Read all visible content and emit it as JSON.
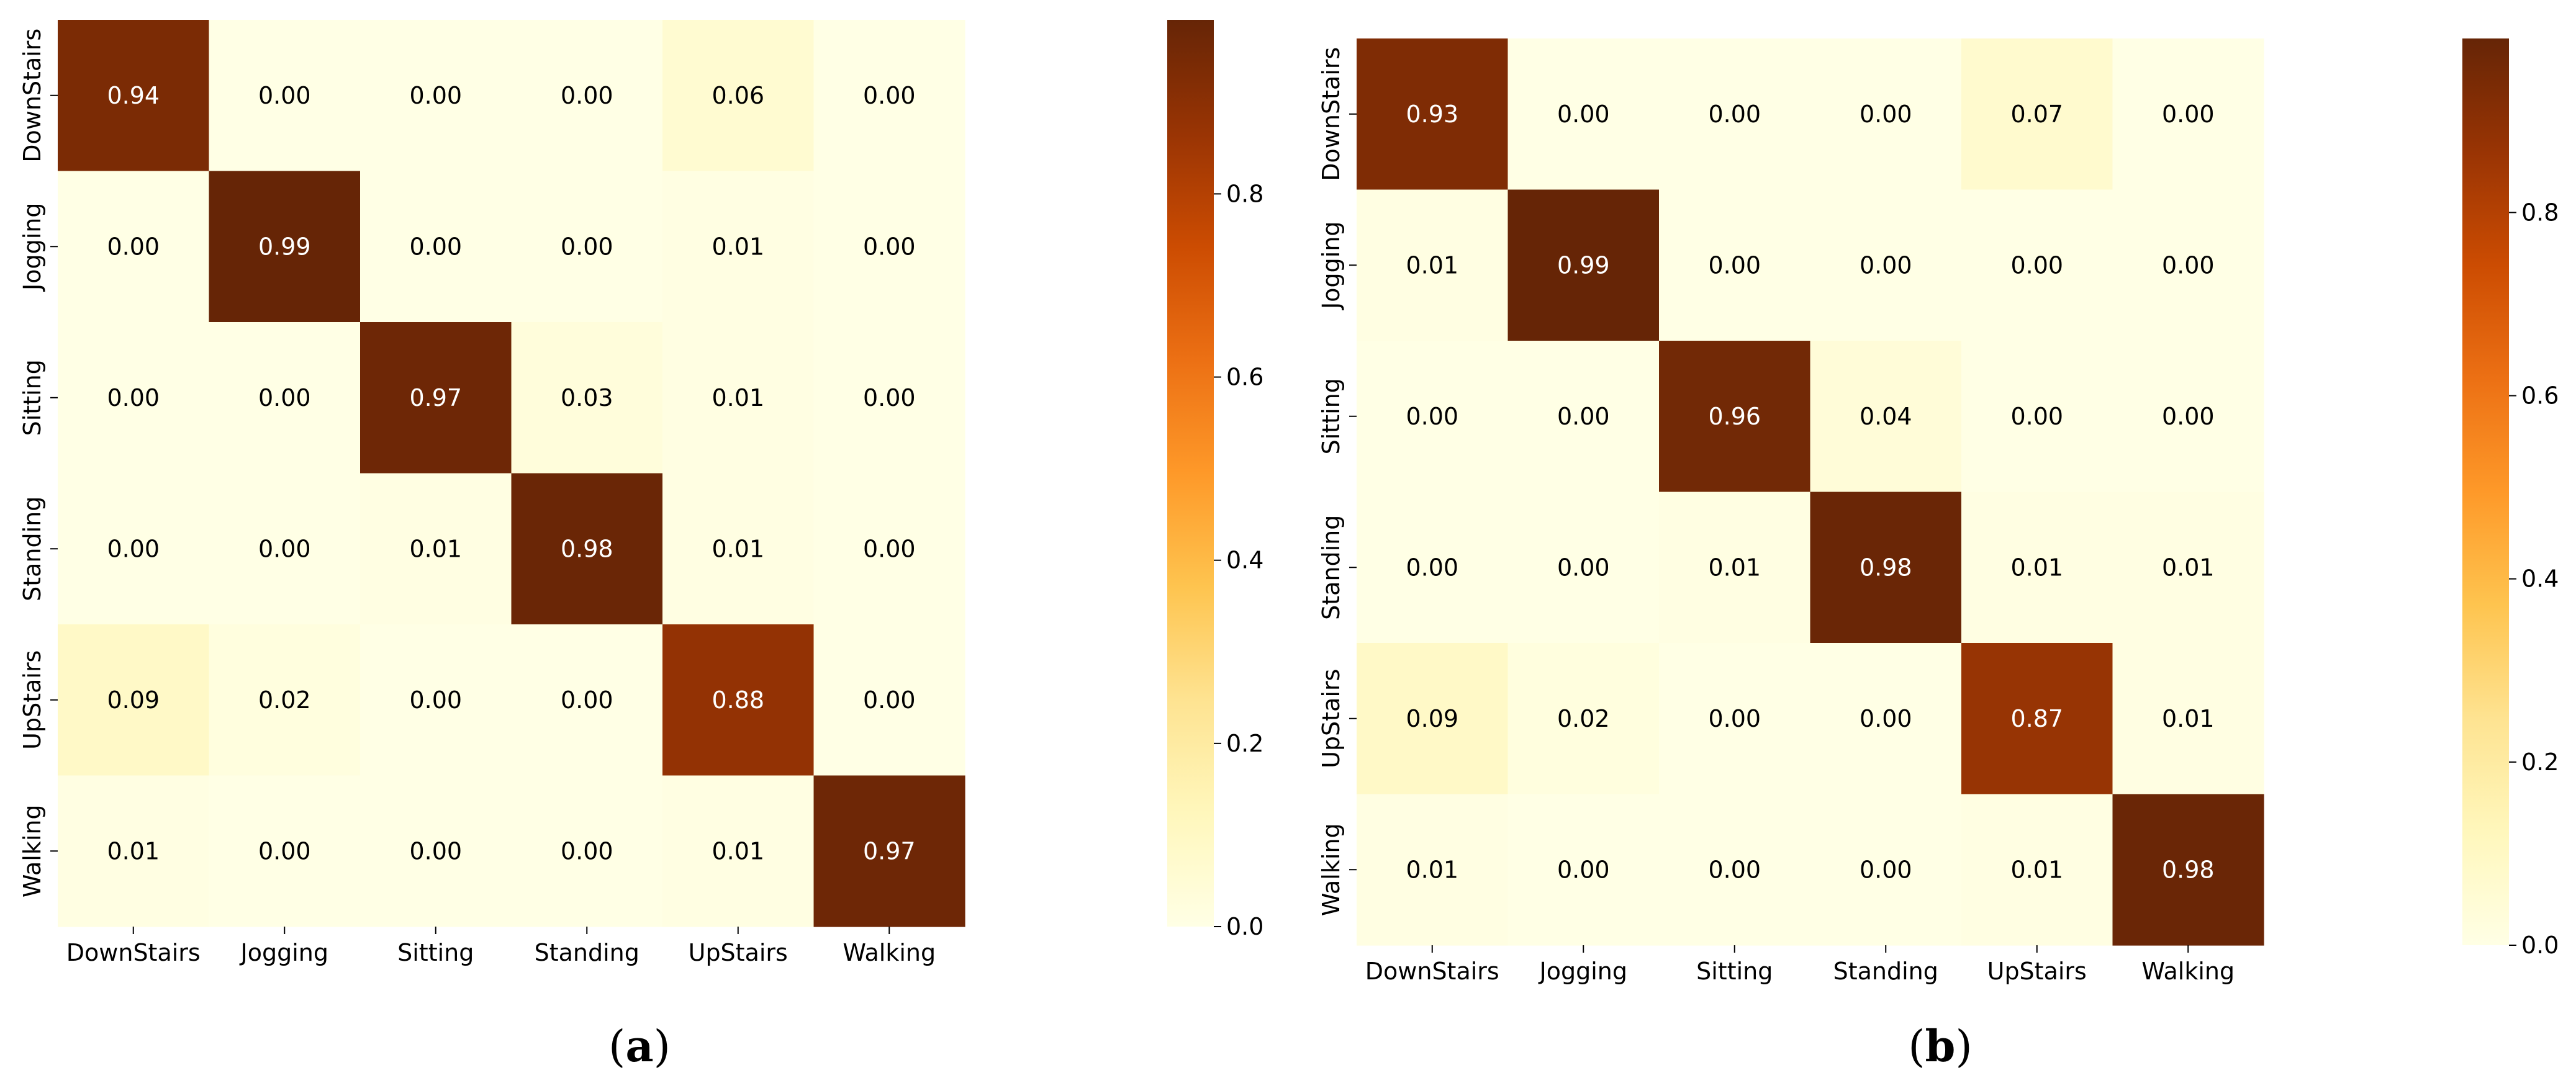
{
  "chart_data": [
    {
      "type": "heatmap",
      "panel_label": "(a)",
      "title": "",
      "xlabel": "",
      "ylabel": "",
      "categories": [
        "DownStairs",
        "Jogging",
        "Sitting",
        "Standing",
        "UpStairs",
        "Walking"
      ],
      "matrix": [
        [
          0.94,
          0.0,
          0.0,
          0.0,
          0.06,
          0.0
        ],
        [
          0.0,
          0.99,
          0.0,
          0.0,
          0.01,
          0.0
        ],
        [
          0.0,
          0.0,
          0.97,
          0.03,
          0.01,
          0.0
        ],
        [
          0.0,
          0.0,
          0.01,
          0.98,
          0.01,
          0.0
        ],
        [
          0.09,
          0.02,
          0.0,
          0.0,
          0.88,
          0.0
        ],
        [
          0.01,
          0.0,
          0.0,
          0.0,
          0.01,
          0.97
        ]
      ],
      "colorbar": {
        "min": 0.0,
        "max": 0.99,
        "ticks": [
          0.0,
          0.2,
          0.4,
          0.6,
          0.8
        ],
        "tick_labels": [
          "0.0",
          "0.2",
          "0.4",
          "0.6",
          "0.8"
        ]
      }
    },
    {
      "type": "heatmap",
      "panel_label": "(b)",
      "title": "",
      "xlabel": "",
      "ylabel": "",
      "categories": [
        "DownStairs",
        "Jogging",
        "Sitting",
        "Standing",
        "UpStairs",
        "Walking"
      ],
      "matrix": [
        [
          0.93,
          0.0,
          0.0,
          0.0,
          0.07,
          0.0
        ],
        [
          0.01,
          0.99,
          0.0,
          0.0,
          0.0,
          0.0
        ],
        [
          0.0,
          0.0,
          0.96,
          0.04,
          0.0,
          0.0
        ],
        [
          0.0,
          0.0,
          0.01,
          0.98,
          0.01,
          0.01
        ],
        [
          0.09,
          0.02,
          0.0,
          0.0,
          0.87,
          0.01
        ],
        [
          0.01,
          0.0,
          0.0,
          0.0,
          0.01,
          0.98
        ]
      ],
      "colorbar": {
        "min": 0.0,
        "max": 0.99,
        "ticks": [
          0.0,
          0.2,
          0.4,
          0.6,
          0.8
        ],
        "tick_labels": [
          "0.0",
          "0.2",
          "0.4",
          "0.6",
          "0.8"
        ]
      }
    }
  ],
  "colors": {
    "text_dark": "#000000",
    "text_light": "#ffffff",
    "colormap": [
      "#ffffe5",
      "#fff7bc",
      "#fee391",
      "#fec44f",
      "#fe9929",
      "#ec7014",
      "#cc4c02",
      "#993404",
      "#662506"
    ]
  }
}
